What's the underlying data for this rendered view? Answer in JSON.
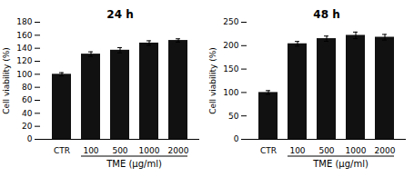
{
  "chart_data": [
    {
      "type": "bar",
      "title": "24 h",
      "categories": [
        "CTR",
        "100",
        "500",
        "1000",
        "2000"
      ],
      "values": [
        100,
        131,
        137,
        148,
        152
      ],
      "errors": [
        2.5,
        3.5,
        4.0,
        3.5,
        2.5
      ],
      "ylim": [
        0,
        180
      ],
      "yticks": [
        0,
        20,
        40,
        60,
        80,
        100,
        120,
        140,
        160,
        180
      ],
      "ylabel": "Cell viability (%)",
      "xlabel": "TME (μg/ml)",
      "color": "#111111"
    },
    {
      "type": "bar",
      "title": "48 h",
      "categories": [
        "CTR",
        "100",
        "500",
        "1000",
        "2000"
      ],
      "values": [
        100,
        204,
        215,
        222,
        218
      ],
      "errors": [
        4.0,
        5.0,
        5.5,
        7.0,
        6.0
      ],
      "ylim": [
        0,
        250
      ],
      "yticks": [
        0,
        50,
        100,
        150,
        200,
        250
      ],
      "ylabel": "Cell viability (%)",
      "xlabel": "TME (μg/ml)",
      "color": "#111111"
    }
  ]
}
